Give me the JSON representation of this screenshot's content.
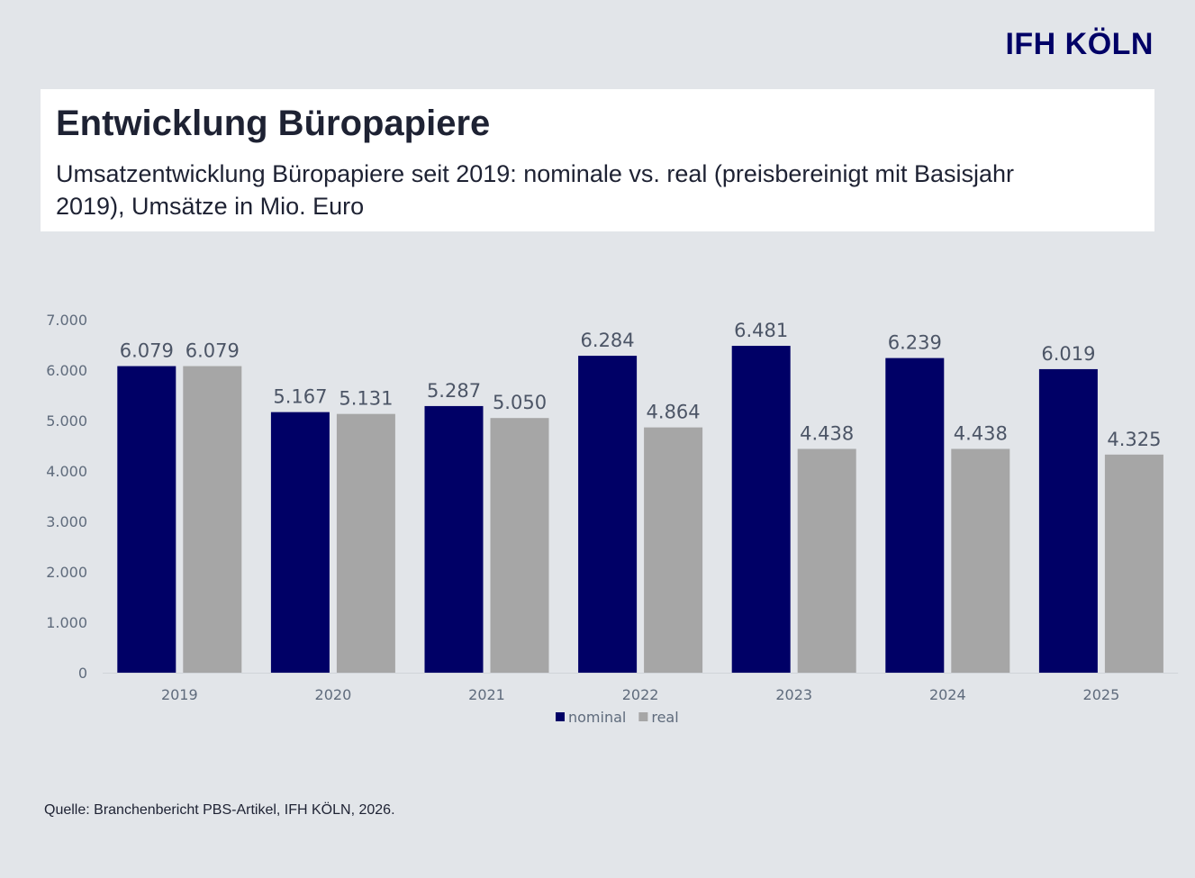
{
  "brand": "IFH KÖLN",
  "title": "Entwicklung Büropapiere",
  "subtitle": "Umsatzentwicklung Büropapiere seit 2019: nominale vs. real (preisbereinigt mit Basisjahr 2019), Umsätze in Mio. Euro",
  "source": "Quelle: Branchenbericht PBS-Artikel, IFH KÖLN, 2026.",
  "chart_data": {
    "type": "bar",
    "categories": [
      "2019",
      "2020",
      "2021",
      "2022",
      "2023",
      "2024",
      "2025"
    ],
    "series": [
      {
        "name": "nominal",
        "color": "#000066",
        "values": [
          6079,
          5167,
          5287,
          6284,
          6481,
          6239,
          6019
        ],
        "labels": [
          "6.079",
          "5.167",
          "5.287",
          "6.284",
          "6.481",
          "6.239",
          "6.019"
        ]
      },
      {
        "name": "real",
        "color": "#a6a6a6",
        "values": [
          6079,
          5131,
          5050,
          4864,
          4438,
          4438,
          4325
        ],
        "labels": [
          "6.079",
          "5.131",
          "5.050",
          "4.864",
          "4.438",
          "4.438",
          "4.325"
        ]
      }
    ],
    "ylim": [
      0,
      7000
    ],
    "yticks": [
      0,
      1000,
      2000,
      3000,
      4000,
      5000,
      6000,
      7000
    ],
    "ytick_labels": [
      "0",
      "1.000",
      "2.000",
      "3.000",
      "4.000",
      "5.000",
      "6.000",
      "7.000"
    ],
    "grid": false,
    "legend": "bottom"
  }
}
